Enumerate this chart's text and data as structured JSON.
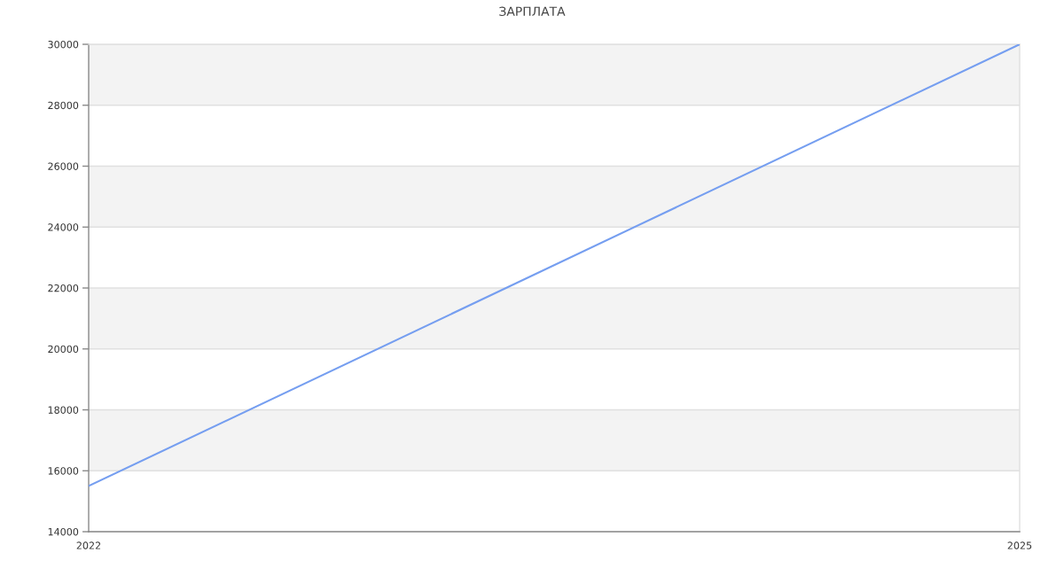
{
  "chart_data": {
    "type": "line",
    "title": "ЗАРПЛАТА",
    "x": [
      2022,
      2025
    ],
    "series": [
      {
        "color": "#759ef0",
        "values": [
          15500,
          30000
        ]
      }
    ],
    "xlim": [
      2022,
      2025
    ],
    "xticks": [
      2022,
      2025
    ],
    "ylim": [
      14000,
      30000
    ],
    "yticks": [
      14000,
      16000,
      18000,
      20000,
      22000,
      24000,
      26000,
      28000,
      30000
    ],
    "bands": [
      {
        "axis": "y",
        "from": 16000,
        "to": 18000,
        "color": "#f3f3f3"
      },
      {
        "axis": "y",
        "from": 20000,
        "to": 22000,
        "color": "#f3f3f3"
      },
      {
        "axis": "y",
        "from": 24000,
        "to": 26000,
        "color": "#f3f3f3"
      },
      {
        "axis": "y",
        "from": 28000,
        "to": 30000,
        "color": "#f3f3f3"
      }
    ],
    "grid": "y",
    "marker": "none",
    "line_style": "solid"
  }
}
